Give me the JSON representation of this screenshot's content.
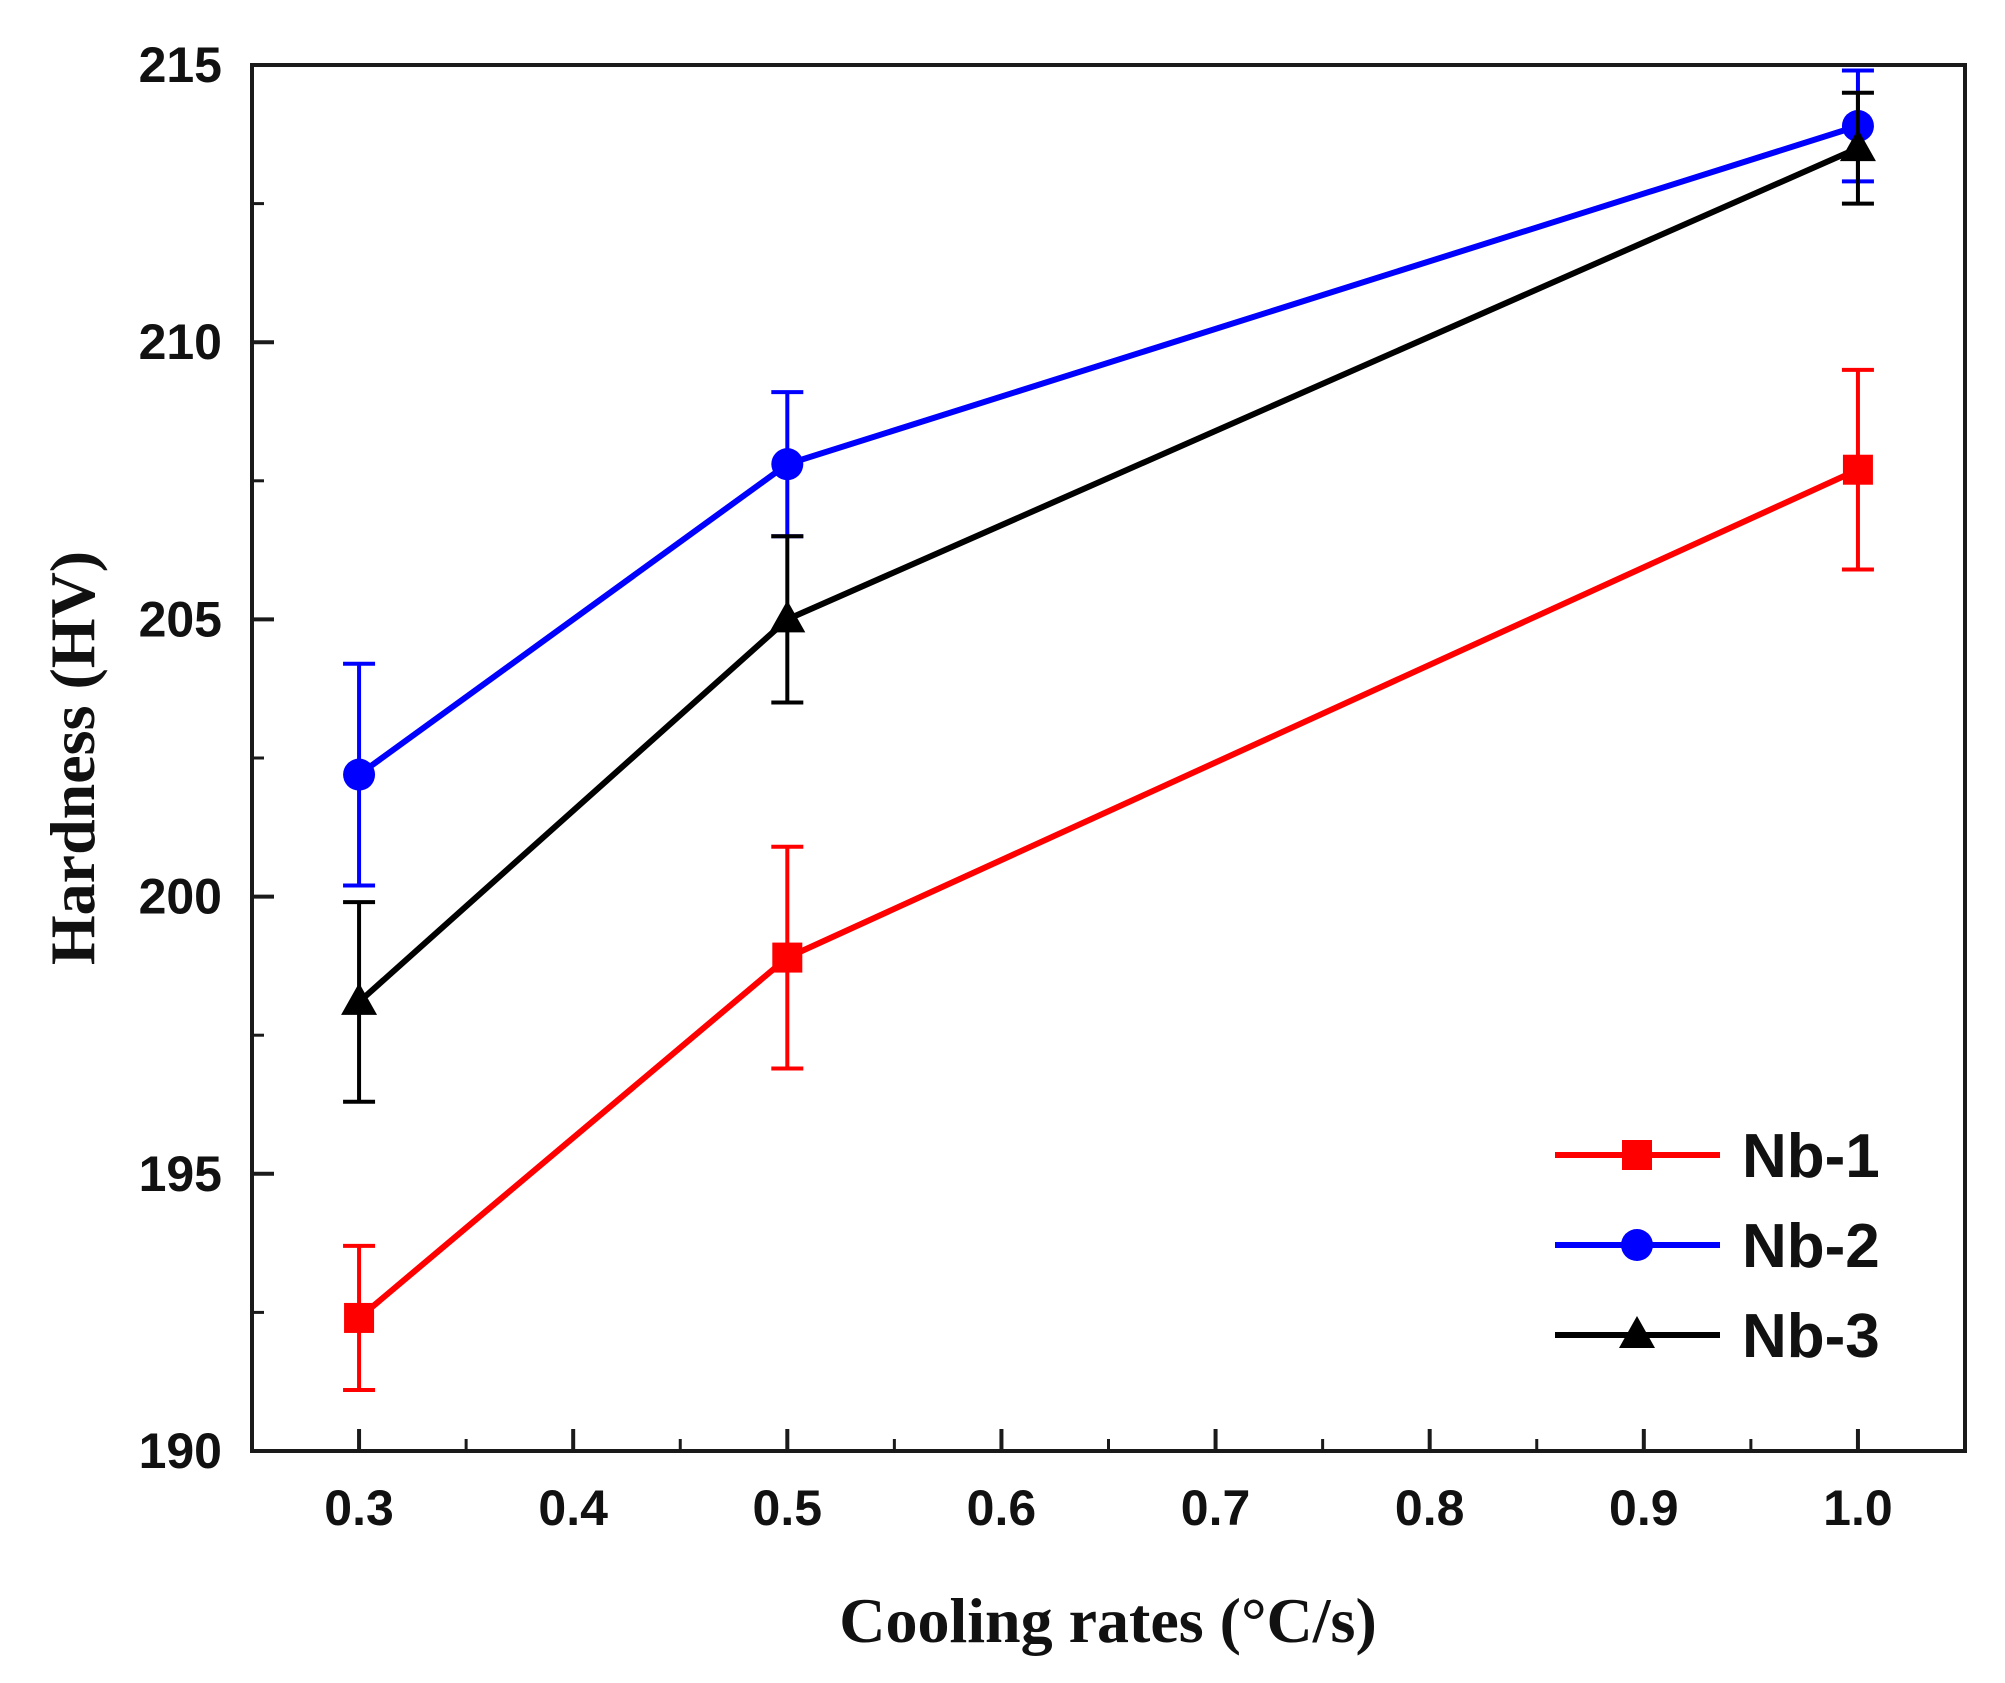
{
  "chart_data": {
    "type": "line",
    "title": "",
    "xlabel": "Cooling rates (°C/s)",
    "ylabel": "Hardness (HV)",
    "xlim": [
      0.25,
      1.05
    ],
    "ylim": [
      190,
      215
    ],
    "x_ticks": [
      "0.3",
      "0.4",
      "0.5",
      "0.6",
      "0.7",
      "0.8",
      "0.9",
      "1.0"
    ],
    "y_ticks": [
      "190",
      "195",
      "200",
      "205",
      "210",
      "215"
    ],
    "x": [
      0.3,
      0.5,
      1.0
    ],
    "grid": false,
    "legend_position": "bottom-right",
    "series": [
      {
        "name": "Nb-1",
        "color": "#ff0000",
        "marker": "square",
        "values": [
          192.4,
          198.9,
          207.7
        ],
        "errors": [
          1.3,
          2.0,
          1.8
        ]
      },
      {
        "name": "Nb-2",
        "color": "#0000ff",
        "marker": "circle",
        "values": [
          202.2,
          207.8,
          213.9
        ],
        "errors": [
          2.0,
          1.3,
          1.0
        ]
      },
      {
        "name": "Nb-3",
        "color": "#000000",
        "marker": "triangle",
        "values": [
          198.1,
          205.0,
          213.5
        ],
        "errors": [
          1.8,
          1.5,
          1.0
        ]
      }
    ]
  }
}
